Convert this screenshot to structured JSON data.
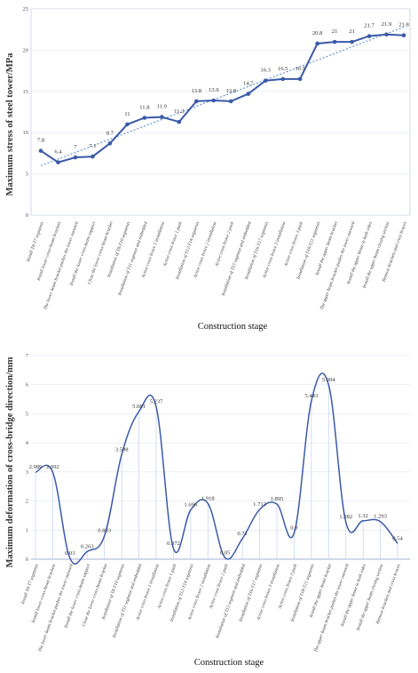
{
  "chart_data": [
    {
      "type": "line",
      "ylabel": "Maximum stress of steel tower/MPa",
      "xlabel": "Construction stage",
      "ylim": [
        0,
        25
      ],
      "yticks": [
        0,
        5,
        10,
        15,
        20,
        25
      ],
      "trendline": true,
      "colors": {
        "line": "#3a5aa8",
        "trend": "#5b8fd0"
      },
      "categories": [
        "Install T0-T7 segments",
        "Install lower cross-beam brackets",
        "The lower beam bracket pushes the tower outward",
        "Install the lower cross-beam support",
        "Close the lower cross-beam bracket",
        "Installation of T8-T10 segments",
        "Installation of T11 segment and embedded",
        "Active cross brace 1 installation",
        "Active cross brace 1 push",
        "Installation of T12-T14 segments",
        "Active cross brace 2 installation",
        "Active cross brace 2 push",
        "Installation of T15 segment and embedded",
        "Installation of T16-T17 segments",
        "Active cross brace 3 installation",
        "Active cross brace 3 push",
        "Installation of T18-T21 segments",
        "Install the upper beam bracket",
        "The upper beam bracket pushes the tower outward",
        "Install the upper beam in both sides",
        "Install the upper beam closing section",
        "Remove brackets and cross braces"
      ],
      "series": [
        {
          "values": [
            7.8,
            6.4,
            7,
            7.1,
            8.7,
            11,
            11.8,
            11.9,
            11.3,
            13.8,
            13.9,
            13.8,
            14.7,
            16.3,
            16.5,
            16.5,
            20.8,
            21,
            21,
            21.7,
            21.9,
            21.8
          ]
        }
      ]
    },
    {
      "type": "line",
      "ylabel": "Maximum deformation of cross-bridge direction/mm",
      "xlabel": "Construction stage",
      "ylim": [
        0,
        7
      ],
      "yticks": [
        0,
        1,
        2,
        3,
        4,
        5,
        6,
        7
      ],
      "drop_lines": true,
      "colors": {
        "line": "#3a5aa8",
        "drop": "#c8d4ec",
        "grid": "#dfe6f3"
      },
      "categories": [
        "Install T0-T7 segments",
        "Install lower cross-beam brackets",
        "The lower beam bracket pushes the tower outward",
        "Install the lower cross-beam support",
        "Close the lower cross-beam bracket",
        "Installation of T8-T10 segments",
        "Installation of T11 segment and embedded",
        "Active cross brace 1 installation",
        "Active cross brace 1 push",
        "Installation of T12-T14 segments",
        "Active cross brace 2 installation",
        "Active cross brace 2 push",
        "Installation of T15 segment and embedded",
        "Installation of T16-T17 segments",
        "Active cross brace 3 installation",
        "Active cross brace 3 push",
        "Installation of T18-T21 segments",
        "Install the upper beam bracket",
        "The upper beam bracket pushes the tower outward",
        "Install the upper beam in both sides",
        "Install the upper beam closing section",
        "Remove brackets and cross braces"
      ],
      "series": [
        {
          "values": [
            2.989,
            2.992,
            0.03,
            0.263,
            0.803,
            3.598,
            5.081,
            5.237,
            0.372,
            1.696,
            1.918,
            0.05,
            0.71,
            1.712,
            1.895,
            0.9,
            5.443,
            5.994,
            1.282,
            1.32,
            1.293,
            0.54
          ]
        }
      ]
    }
  ]
}
